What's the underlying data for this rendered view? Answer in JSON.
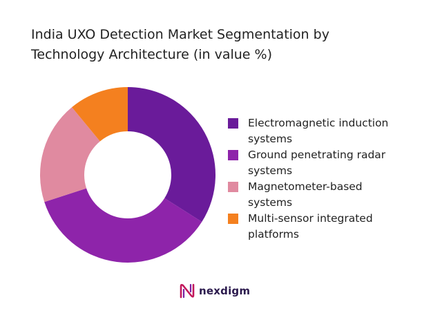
{
  "chart_data": {
    "type": "pie",
    "title_lines": [
      "India UXO Detection Market Segmentation by",
      "Technology Architecture (in value %)"
    ],
    "categories": [
      "Electromagnetic induction systems",
      "Ground penetrating radar systems",
      "Magnetometer-based systems",
      "Multi-sensor integrated platforms"
    ],
    "values": [
      34,
      36,
      19,
      11
    ],
    "colors": [
      "#6a1b9a",
      "#8e24aa",
      "#e08aa0",
      "#f4801f"
    ],
    "donut": true,
    "legend_position": "right",
    "legend": [
      {
        "label_lines": [
          "Electromagnetic induction",
          "systems"
        ],
        "color": "#6a1b9a"
      },
      {
        "label_lines": [
          "Ground penetrating radar",
          "systems"
        ],
        "color": "#8e24aa"
      },
      {
        "label_lines": [
          "Magnetometer-based",
          "systems"
        ],
        "color": "#e08aa0"
      },
      {
        "label_lines": [
          "Multi-sensor integrated",
          "platforms"
        ],
        "color": "#f4801f"
      }
    ]
  },
  "brand": {
    "name": "nexdigm",
    "logo_icon": "nexdigm-logo-icon",
    "color": "#2b1a4d"
  }
}
